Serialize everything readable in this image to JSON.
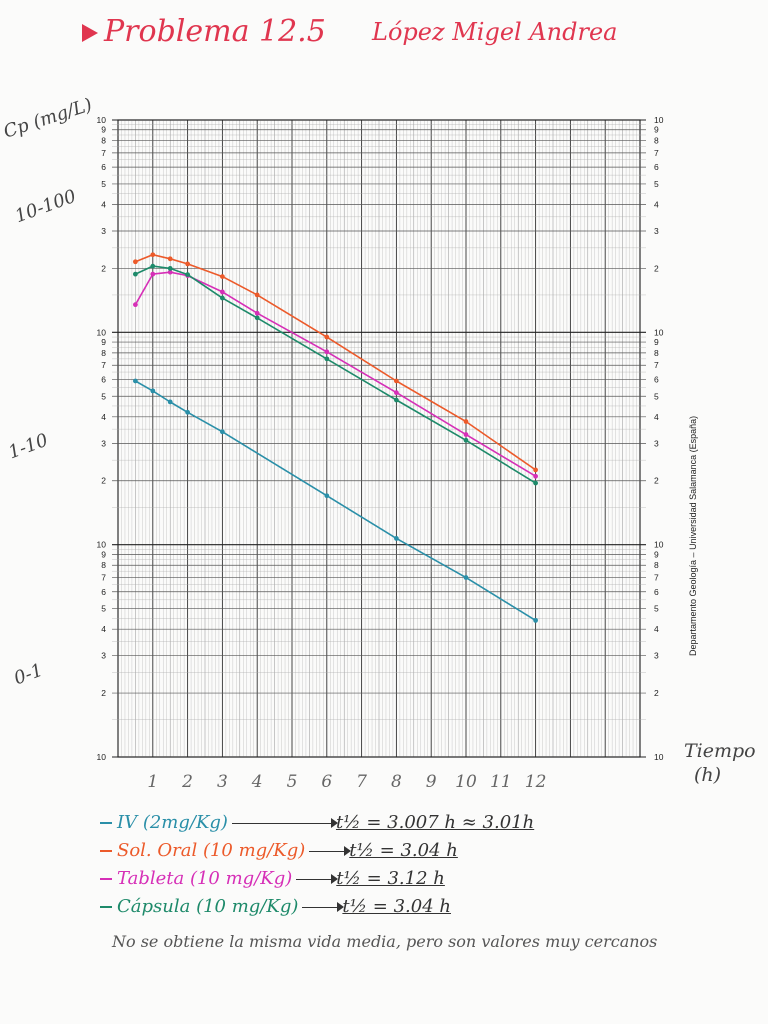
{
  "header": {
    "title": "Problema 12.5",
    "author": "López Migel Andrea"
  },
  "y_annotations": {
    "unit": "Cp (mg/L)",
    "band_high": "10-100",
    "band_mid": "1-10",
    "band_low": "0-1"
  },
  "x_annotation": {
    "line1": "Tiempo",
    "line2": "(h)"
  },
  "sheet_text": "Departamento Geología – Universidad Salamanca (España)",
  "legend": [
    {
      "label": "IV (2mg/Kg)",
      "result": "t½ = 3.007 h ≈ 3.01h",
      "color": "#2a8fa8"
    },
    {
      "label": "Sol. Oral (10 mg/Kg)",
      "result": "t½ = 3.04 h",
      "color": "#ec5a2a"
    },
    {
      "label": "Tableta (10 mg/Kg)",
      "result": "t½ = 3.12 h",
      "color": "#d62fb7"
    },
    {
      "label": "Cápsula (10 mg/Kg)",
      "result": "t½ = 3.04 h",
      "color": "#1e8a6a"
    }
  ],
  "note": "No se obtiene la misma vida media, pero son valores muy cercanos",
  "chart_data": {
    "type": "line",
    "y_scale": "log",
    "ylim": [
      0.1,
      100
    ],
    "xlim": [
      0,
      15
    ],
    "grid": true,
    "x_ticks": [
      "1",
      "2",
      "3",
      "4",
      "5",
      "6",
      "7",
      "8",
      "9",
      "10",
      "11",
      "12"
    ],
    "left_tick_labels": [
      "10",
      "9",
      "8",
      "7",
      "6",
      "5",
      "4",
      "3",
      "2"
    ],
    "right_tick_labels": [
      "10",
      "9",
      "8",
      "7",
      "6",
      "5",
      "4",
      "3",
      "2"
    ],
    "series": [
      {
        "name": "IV (2mg/Kg)",
        "color": "#2a8fa8",
        "x": [
          0.5,
          1,
          1.5,
          2,
          3,
          6,
          8,
          10,
          12
        ],
        "y": [
          5.9,
          5.3,
          4.7,
          4.2,
          3.4,
          1.7,
          1.07,
          0.7,
          0.44
        ]
      },
      {
        "name": "Sol. Oral (10 mg/Kg)",
        "color": "#ec5a2a",
        "x": [
          0.5,
          1,
          1.5,
          2,
          3,
          4,
          6,
          8,
          10,
          12
        ],
        "y": [
          21.5,
          23.2,
          22.2,
          21,
          18.3,
          15,
          9.5,
          5.9,
          3.8,
          2.25
        ]
      },
      {
        "name": "Tableta (10 mg/Kg)",
        "color": "#d62fb7",
        "x": [
          0.5,
          1,
          1.5,
          2,
          3,
          4,
          6,
          8,
          10,
          12
        ],
        "y": [
          13.5,
          18.8,
          19.2,
          18.5,
          15.5,
          12.3,
          8.1,
          5.2,
          3.3,
          2.1
        ]
      },
      {
        "name": "Cápsula (10 mg/Kg)",
        "color": "#1e8a6a",
        "x": [
          0.5,
          1,
          1.5,
          2,
          3,
          4,
          6,
          8,
          10,
          12
        ],
        "y": [
          18.8,
          20.5,
          20,
          18.7,
          14.5,
          11.7,
          7.5,
          4.8,
          3.1,
          1.95
        ]
      }
    ]
  }
}
